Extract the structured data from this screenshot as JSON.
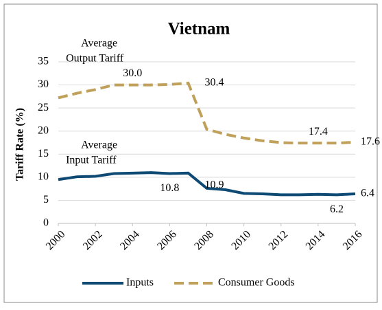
{
  "chart_data": {
    "type": "line",
    "title": "Vietnam",
    "y_label": "Tariff Rate (%)",
    "x": [
      2000,
      2001,
      2002,
      2003,
      2004,
      2005,
      2006,
      2007,
      2008,
      2009,
      2010,
      2011,
      2012,
      2013,
      2014,
      2015,
      2016
    ],
    "xlim": [
      2000,
      2016
    ],
    "xticks": [
      2000,
      2002,
      2004,
      2006,
      2008,
      2010,
      2012,
      2014,
      2016
    ],
    "ylim": [
      0,
      35
    ],
    "yticks": [
      0,
      5,
      10,
      15,
      20,
      25,
      30,
      35
    ],
    "grid": true,
    "legend": "bottom",
    "series": [
      {
        "name": "Inputs",
        "color": "#0e4a73",
        "dash": false,
        "values": [
          9.5,
          10.1,
          10.2,
          10.8,
          10.9,
          11.0,
          10.8,
          10.9,
          7.6,
          7.3,
          6.5,
          6.4,
          6.2,
          6.2,
          6.3,
          6.2,
          6.4
        ],
        "value_labels": [
          null,
          null,
          null,
          null,
          null,
          null,
          "10.8",
          "10.9",
          null,
          null,
          null,
          null,
          null,
          null,
          null,
          "6.2",
          "6.4"
        ]
      },
      {
        "name": "Consumer Goods",
        "color": "#c0a15c",
        "dash": true,
        "values": [
          27.2,
          28.2,
          29.0,
          30.0,
          30.0,
          30.0,
          30.1,
          30.4,
          20.4,
          19.3,
          18.5,
          17.9,
          17.5,
          17.4,
          17.4,
          17.4,
          17.6
        ],
        "value_labels": [
          null,
          null,
          null,
          null,
          "30.0",
          null,
          null,
          "30.4",
          null,
          null,
          null,
          null,
          null,
          null,
          "17.4",
          null,
          "17.6"
        ]
      }
    ],
    "annotations": [
      {
        "lines": [
          "Average",
          "Output Tariff"
        ],
        "x": 2001,
        "y": 35
      },
      {
        "lines": [
          "Average",
          "Input Tariff"
        ],
        "x": 2001,
        "y": 13
      }
    ]
  }
}
